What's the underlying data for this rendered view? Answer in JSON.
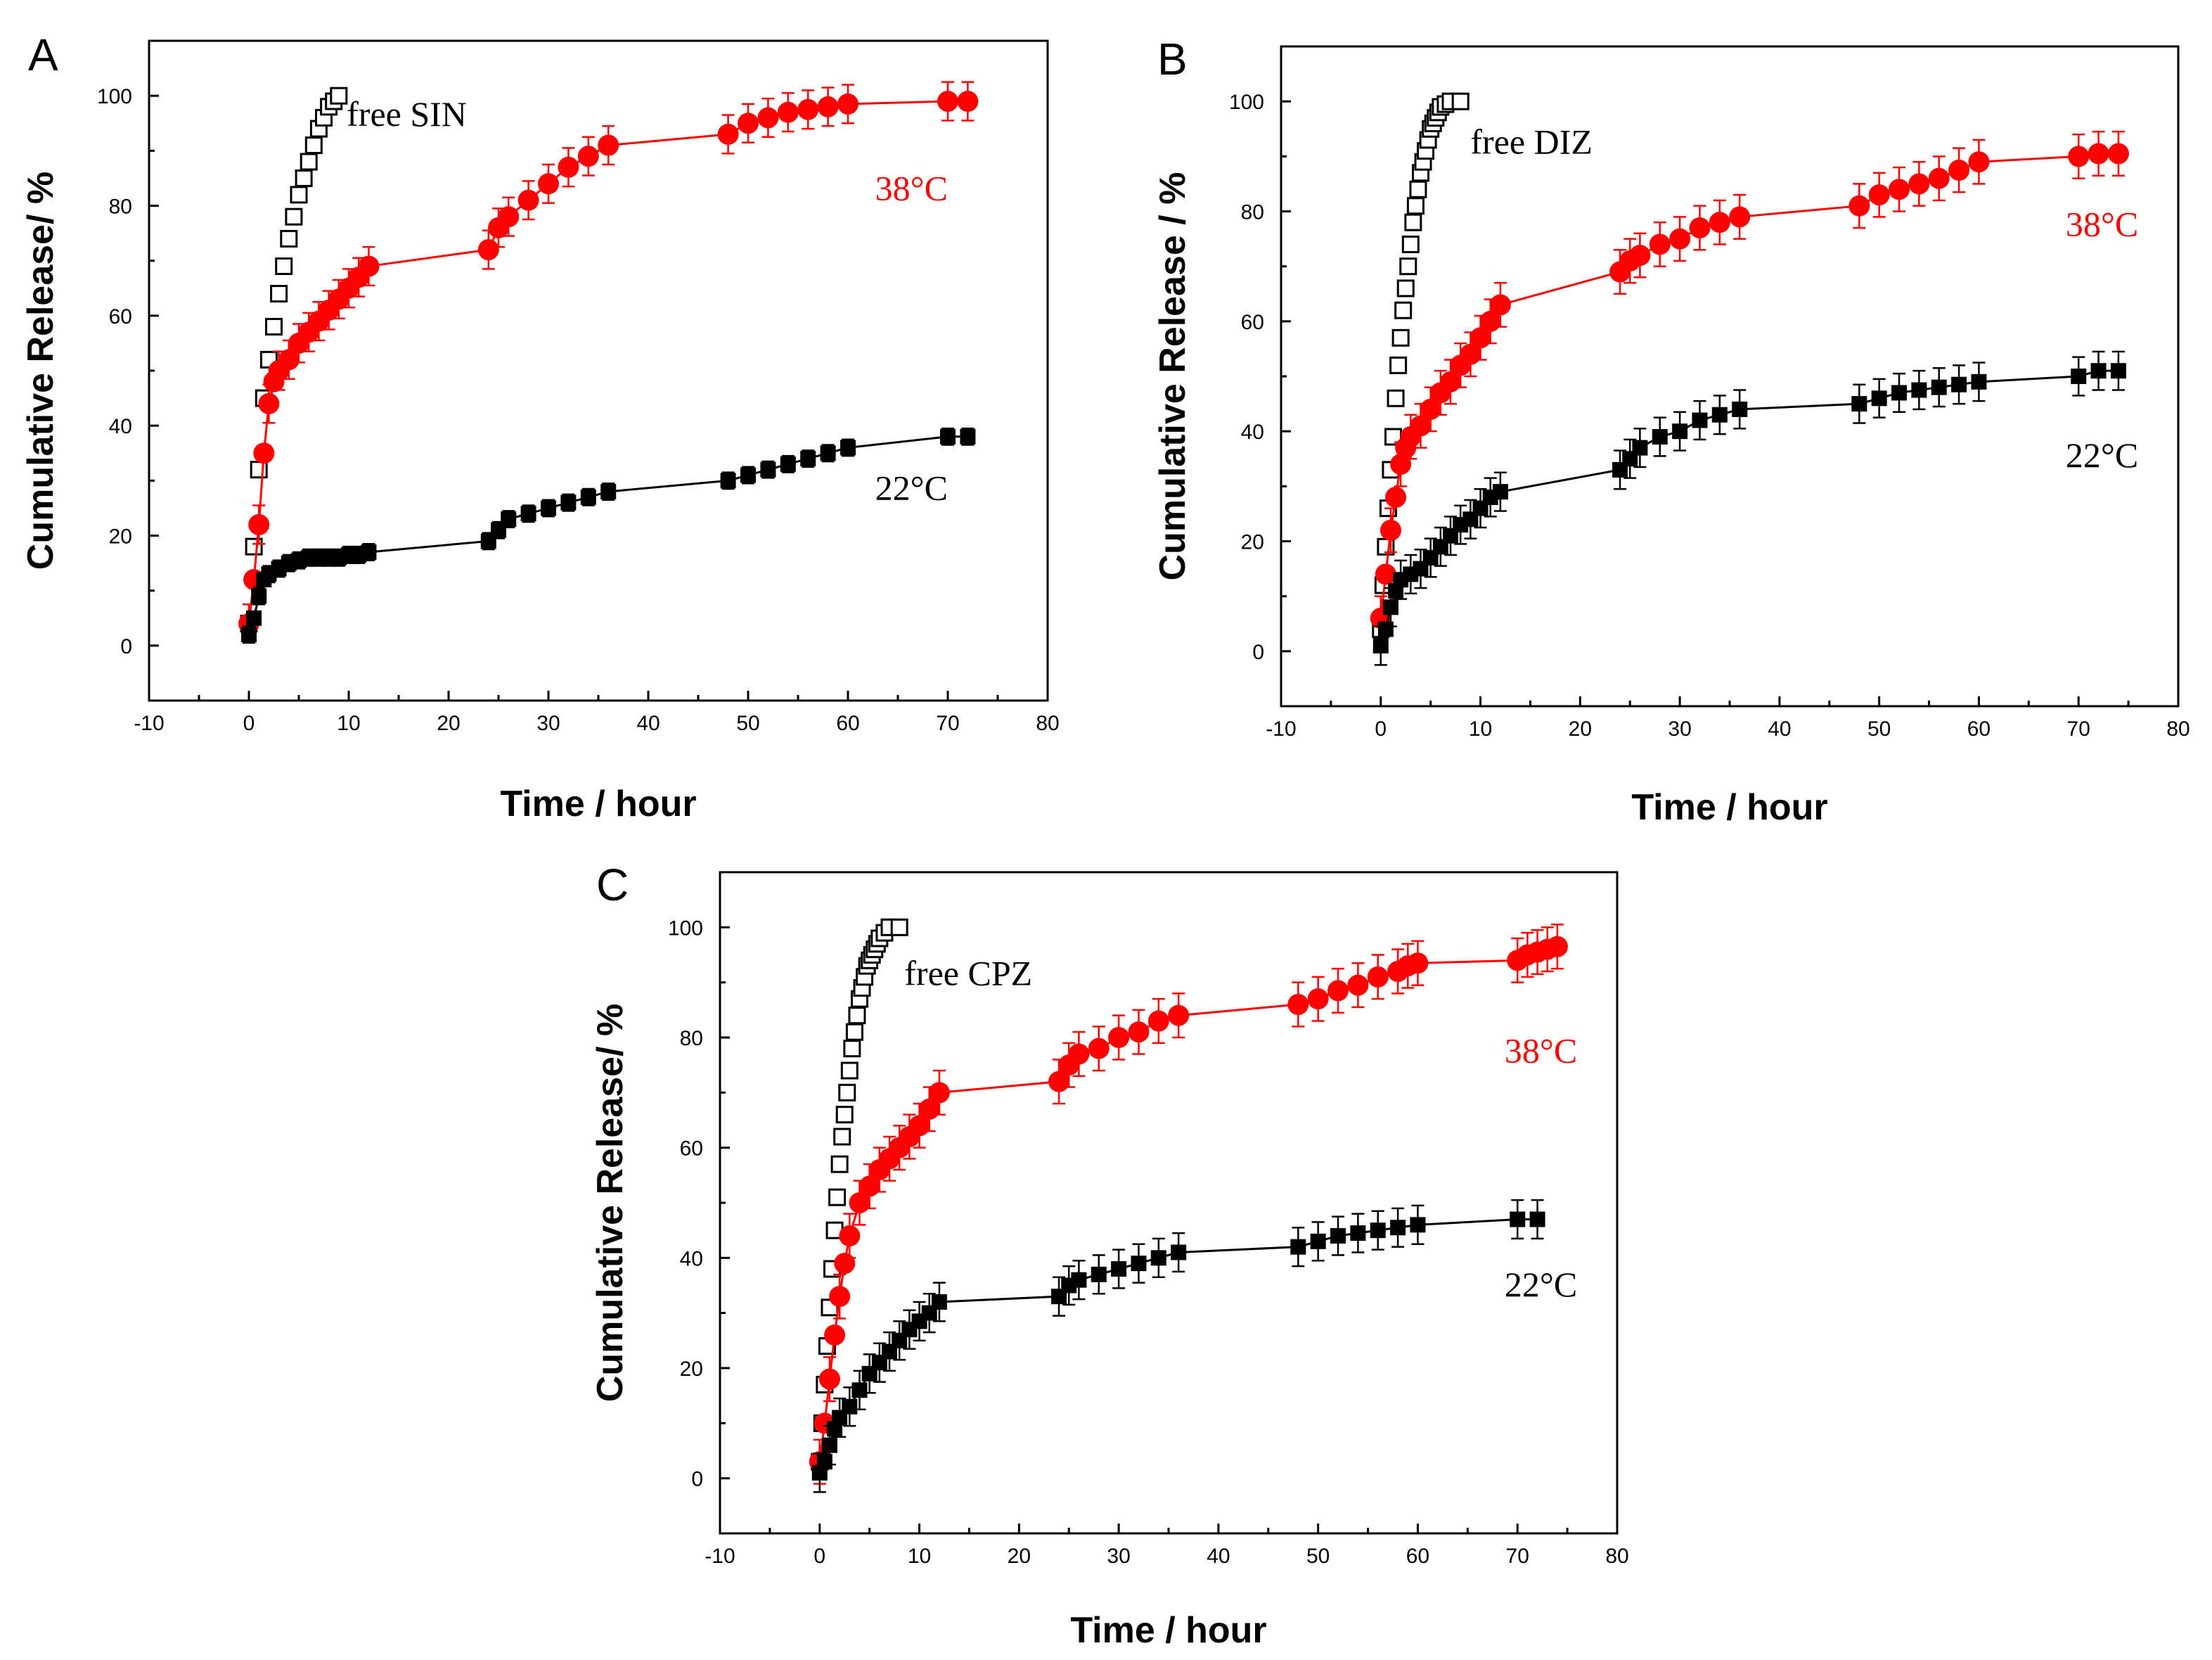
{
  "figure": {
    "colors": {
      "red": "#ff0000",
      "black": "#000000",
      "white": "#ffffff"
    }
  },
  "chart_data": [
    {
      "type": "scatter",
      "panel": "A",
      "xlabel": "Time / hour",
      "ylabel": "Cumulative Release/ %",
      "xlim": [
        -10,
        80
      ],
      "ylim": [
        -10,
        110
      ],
      "xticks": [
        -10,
        0,
        10,
        20,
        30,
        40,
        50,
        60,
        70,
        80
      ],
      "yticks": [
        0,
        20,
        40,
        60,
        80,
        100
      ],
      "annotations": [
        {
          "text": "free SIN",
          "color": "#000000",
          "series": "free"
        },
        {
          "text": "38°C",
          "color": "#ff0000",
          "series": "38"
        },
        {
          "text": "22°C",
          "color": "#000000",
          "series": "22"
        }
      ],
      "series": [
        {
          "name": "free SIN",
          "marker": "open-square",
          "color": "#000000",
          "connect": false,
          "err": 0,
          "x": [
            0,
            0.5,
            1,
            1.5,
            2,
            2.5,
            3,
            3.5,
            4,
            4.5,
            5,
            5.5,
            6,
            6.5,
            7,
            7.5,
            8,
            8.5,
            9
          ],
          "y": [
            4,
            18,
            32,
            45,
            52,
            58,
            64,
            69,
            74,
            78,
            82,
            85,
            88,
            91,
            94,
            96,
            98,
            99,
            100
          ]
        },
        {
          "name": "38°C",
          "marker": "circle",
          "color": "#ff0000",
          "connect": true,
          "err": 3.5,
          "x": [
            0,
            0.5,
            1,
            1.5,
            2,
            2.5,
            3,
            4,
            5,
            6,
            7,
            8,
            9,
            10,
            11,
            12,
            24,
            25,
            26,
            28,
            30,
            32,
            34,
            36,
            48,
            50,
            52,
            54,
            56,
            58,
            60,
            70,
            72
          ],
          "y": [
            4,
            12,
            22,
            35,
            44,
            48,
            50,
            52,
            55,
            57,
            59,
            61,
            63,
            65,
            67,
            69,
            72,
            76,
            78,
            81,
            84,
            87,
            89,
            91,
            93,
            95,
            96,
            97,
            97.5,
            98,
            98.5,
            99,
            99
          ]
        },
        {
          "name": "22°C",
          "marker": "square",
          "color": "#000000",
          "connect": true,
          "err": 1.5,
          "x": [
            0,
            0.5,
            1,
            1.5,
            2,
            3,
            4,
            5,
            6,
            7,
            8,
            9,
            10,
            11,
            12,
            24,
            25,
            26,
            28,
            30,
            32,
            34,
            36,
            48,
            50,
            52,
            54,
            56,
            58,
            60,
            70,
            72
          ],
          "y": [
            2,
            5,
            9,
            12,
            13,
            14,
            15,
            15.5,
            16,
            16,
            16,
            16,
            16.5,
            16.5,
            17,
            19,
            21,
            23,
            24,
            25,
            26,
            27,
            28,
            30,
            31,
            32,
            33,
            34,
            35,
            36,
            38,
            38
          ]
        }
      ]
    },
    {
      "type": "scatter",
      "panel": "B",
      "xlabel": "Time / hour",
      "ylabel": "Cumulative Release / %",
      "xlim": [
        -10,
        80
      ],
      "ylim": [
        -10,
        110
      ],
      "xticks": [
        -10,
        0,
        10,
        20,
        30,
        40,
        50,
        60,
        70,
        80
      ],
      "yticks": [
        0,
        20,
        40,
        60,
        80,
        100
      ],
      "annotations": [
        {
          "text": "free DIZ",
          "color": "#000000",
          "series": "free"
        },
        {
          "text": "38°C",
          "color": "#ff0000",
          "series": "38"
        },
        {
          "text": "22°C",
          "color": "#000000",
          "series": "22"
        }
      ],
      "series": [
        {
          "name": "free DIZ",
          "marker": "open-square",
          "color": "#000000",
          "connect": false,
          "err": 0,
          "x": [
            0,
            0.25,
            0.5,
            0.75,
            1,
            1.25,
            1.5,
            1.75,
            2,
            2.25,
            2.5,
            2.75,
            3,
            3.25,
            3.5,
            3.75,
            4,
            4.25,
            4.5,
            4.75,
            5,
            5.25,
            5.5,
            5.75,
            6,
            6.5,
            7,
            8
          ],
          "y": [
            4,
            12,
            19,
            26,
            33,
            39,
            46,
            52,
            57,
            62,
            66,
            70,
            74,
            78,
            81,
            84,
            87,
            89,
            91,
            93,
            95,
            96,
            97,
            98,
            99,
            99.5,
            100,
            100
          ]
        },
        {
          "name": "38°C",
          "marker": "circle",
          "color": "#ff0000",
          "connect": true,
          "err": 4,
          "x": [
            0,
            0.5,
            1,
            1.5,
            2,
            2.5,
            3,
            4,
            5,
            6,
            7,
            8,
            9,
            10,
            11,
            12,
            24,
            25,
            26,
            28,
            30,
            32,
            34,
            36,
            48,
            50,
            52,
            54,
            56,
            58,
            60,
            70,
            72,
            74
          ],
          "y": [
            6,
            14,
            22,
            28,
            34,
            37,
            39,
            41,
            44,
            47,
            49,
            52,
            54,
            57,
            60,
            63,
            69,
            71,
            72,
            74,
            75,
            77,
            78,
            79,
            81,
            83,
            84,
            85,
            86,
            87.5,
            89,
            90,
            90.5,
            90.5
          ]
        },
        {
          "name": "22°C",
          "marker": "square",
          "color": "#000000",
          "connect": true,
          "err": 3.5,
          "x": [
            0,
            0.5,
            1,
            1.5,
            2,
            3,
            4,
            5,
            6,
            7,
            8,
            9,
            10,
            11,
            12,
            24,
            25,
            26,
            28,
            30,
            32,
            34,
            36,
            48,
            50,
            52,
            54,
            56,
            58,
            60,
            70,
            72,
            74
          ],
          "y": [
            1,
            4,
            8,
            11,
            13,
            14,
            15,
            17,
            19,
            21,
            23,
            24,
            26,
            28,
            29,
            33,
            35,
            37,
            39,
            40,
            42,
            43,
            44,
            45,
            46,
            47,
            47.5,
            48,
            48.5,
            49,
            50,
            51,
            51
          ]
        }
      ]
    },
    {
      "type": "scatter",
      "panel": "C",
      "xlabel": "Time / hour",
      "ylabel": "Cumulative Release/ %",
      "xlim": [
        -10,
        80
      ],
      "ylim": [
        -10,
        110
      ],
      "xticks": [
        -10,
        0,
        10,
        20,
        30,
        40,
        50,
        60,
        70,
        80
      ],
      "yticks": [
        0,
        20,
        40,
        60,
        80,
        100
      ],
      "annotations": [
        {
          "text": "free CPZ",
          "color": "#000000",
          "series": "free"
        },
        {
          "text": "38°C",
          "color": "#ff0000",
          "series": "38"
        },
        {
          "text": "22°C",
          "color": "#000000",
          "series": "22"
        }
      ],
      "series": [
        {
          "name": "free CPZ",
          "marker": "open-square",
          "color": "#000000",
          "connect": false,
          "err": 0,
          "x": [
            0,
            0.25,
            0.5,
            0.75,
            1,
            1.25,
            1.5,
            1.75,
            2,
            2.25,
            2.5,
            2.75,
            3,
            3.25,
            3.5,
            3.75,
            4,
            4.25,
            4.5,
            4.75,
            5,
            5.25,
            5.5,
            5.75,
            6,
            6.5,
            7,
            8
          ],
          "y": [
            3,
            10,
            17,
            24,
            31,
            38,
            45,
            51,
            57,
            62,
            66,
            70,
            74,
            78,
            81,
            84,
            87,
            89,
            91,
            93,
            94,
            95,
            96,
            97,
            98,
            99,
            100,
            100
          ]
        },
        {
          "name": "38°C",
          "marker": "circle",
          "color": "#ff0000",
          "connect": true,
          "err": 4,
          "x": [
            0,
            0.5,
            1,
            1.5,
            2,
            2.5,
            3,
            4,
            5,
            6,
            7,
            8,
            9,
            10,
            11,
            12,
            24,
            25,
            26,
            28,
            30,
            32,
            34,
            36,
            48,
            50,
            52,
            54,
            56,
            58,
            59,
            60,
            70,
            71,
            72,
            73,
            74
          ],
          "y": [
            3,
            10,
            18,
            26,
            33,
            39,
            44,
            50,
            53,
            56,
            58,
            60,
            62,
            64,
            67,
            70,
            72,
            75,
            77,
            78,
            80,
            81,
            83,
            84,
            86,
            87,
            88.5,
            89.5,
            91,
            92,
            93,
            93.5,
            94,
            95,
            95.5,
            96,
            96.5
          ]
        },
        {
          "name": "22°C",
          "marker": "square",
          "color": "#000000",
          "connect": true,
          "err": 3.5,
          "x": [
            0,
            0.5,
            1,
            1.5,
            2,
            3,
            4,
            5,
            6,
            7,
            8,
            9,
            10,
            11,
            12,
            24,
            25,
            26,
            28,
            30,
            32,
            34,
            36,
            48,
            50,
            52,
            54,
            56,
            58,
            60,
            70,
            72
          ],
          "y": [
            1,
            3,
            6,
            9,
            11,
            13,
            16,
            19,
            21,
            23,
            25,
            27,
            28.5,
            30,
            32,
            33,
            35,
            36,
            37,
            38,
            39,
            40,
            41,
            42,
            43,
            44,
            44.5,
            45,
            45.5,
            46,
            47,
            47
          ]
        }
      ]
    }
  ]
}
